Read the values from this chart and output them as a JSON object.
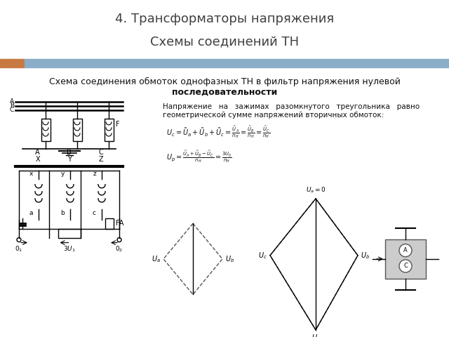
{
  "title_line1": "4. Трансформаторы напряжения",
  "title_line2": "Схемы соединений ТН",
  "subtitle_line1": "Схема соединения обмоток однофазных ТН в фильтр напряжения нулевой",
  "subtitle_line2": "последовательности",
  "desc_line1": "Напряжение   на   зажимах   разомкнутого   треугольника   равно",
  "desc_line2": "геометрической сумме напряжений вторичных обмоток:",
  "background_color": "#ffffff",
  "title_color": "#404040",
  "stripe_orange": "#c87941",
  "stripe_blue": "#8aaec8",
  "title_bg": "#f2f2f2"
}
